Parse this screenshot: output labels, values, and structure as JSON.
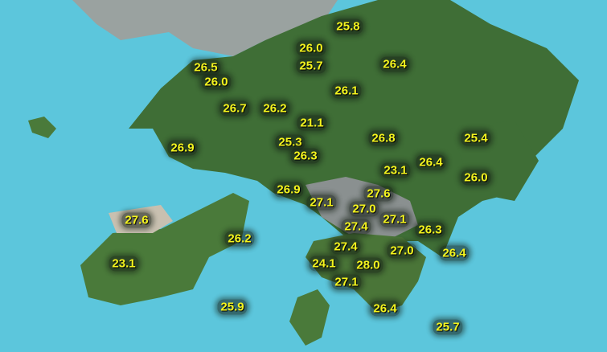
{
  "map": {
    "ocean_color": "#5cc6dc",
    "land_color": "#3f6e36",
    "urban_color": "#8a9090",
    "label_color": "#f5f51e"
  },
  "stations": [
    "25.8",
    "26.0",
    "25.7",
    "26.5",
    "26.0",
    "26.4",
    "26.1",
    "26.7",
    "26.2",
    "21.1",
    "26.8",
    "25.4",
    "26.9",
    "25.3",
    "26.3",
    "23.1",
    "26.4",
    "26.0",
    "26.9",
    "27.1",
    "27.6",
    "27.0",
    "27.1",
    "26.3",
    "27.6",
    "26.2",
    "27.4",
    "27.4",
    "27.0",
    "26.4",
    "23.1",
    "24.1",
    "28.0",
    "27.1",
    "25.9",
    "26.4",
    "25.7"
  ]
}
